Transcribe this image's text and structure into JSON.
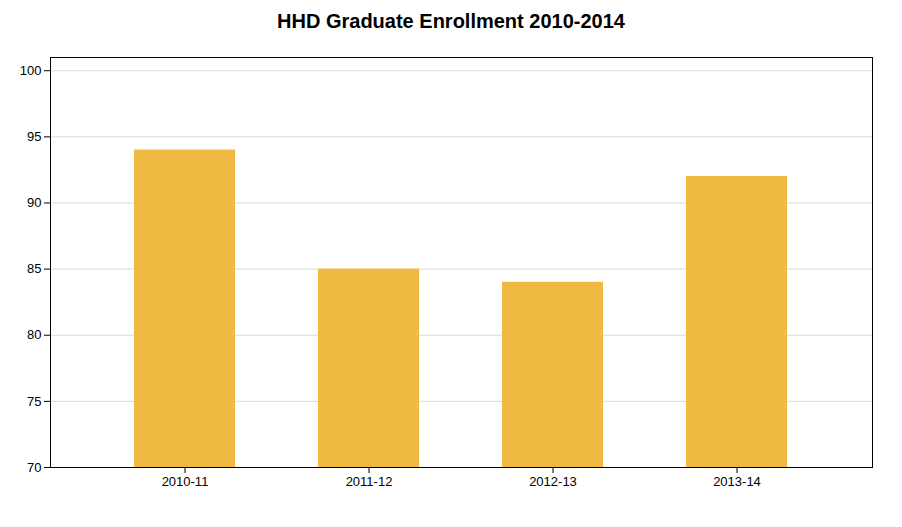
{
  "chart_data": {
    "type": "bar",
    "title": "HHD Graduate Enrollment 2010-2014",
    "categories": [
      "2010-11",
      "2011-12",
      "2012-13",
      "2013-14"
    ],
    "values": [
      94,
      85,
      84,
      92
    ],
    "color": "#F0B942",
    "ylim": [
      70,
      101
    ],
    "yticks": [
      70,
      75,
      80,
      85,
      90,
      95,
      100
    ],
    "grid": true
  }
}
